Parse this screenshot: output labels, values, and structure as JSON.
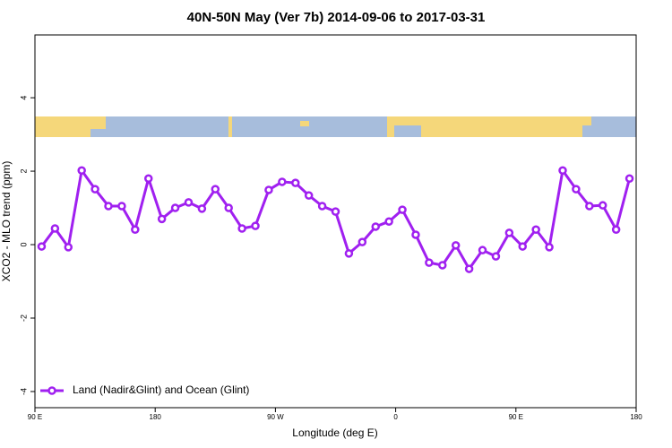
{
  "chart_data": {
    "type": "line",
    "title": "40N-50N May (Ver 7b)   2014-09-06 to 2017-03-31",
    "x_label": "Longitude (deg E)",
    "y_label": "XCO2 - MLO trend (ppm)",
    "x": [
      95,
      105,
      115,
      125,
      135,
      145,
      155,
      165,
      175,
      185,
      195,
      205,
      215,
      225,
      235,
      245,
      255,
      265,
      275,
      285,
      295,
      305,
      315,
      325,
      335,
      345,
      355,
      365,
      375,
      385,
      395,
      405,
      415,
      425,
      435,
      445,
      455,
      465,
      475,
      485,
      495,
      505,
      515,
      525,
      535
    ],
    "series": [
      {
        "name": "Land (Nadir&Glint) and Ocean (Glint)",
        "color": "#a020f0",
        "values": [
          -0.05,
          0.44,
          -0.07,
          2.02,
          1.51,
          1.05,
          1.05,
          0.41,
          1.8,
          0.7,
          1.0,
          1.15,
          0.98,
          1.51,
          1.0,
          0.44,
          0.51,
          1.49,
          1.71,
          1.68,
          1.34,
          1.05,
          0.9,
          -0.24,
          0.07,
          0.49,
          0.63,
          0.95,
          0.27,
          -0.49,
          -0.56,
          -0.02,
          -0.66,
          -0.15,
          -0.32,
          0.32,
          -0.05,
          0.41,
          -0.07,
          2.02,
          1.51,
          1.05,
          1.07,
          0.41,
          1.8
        ]
      }
    ],
    "xlim": [
      90,
      540
    ],
    "xticks": [
      {
        "value": 90,
        "label": "90 E"
      },
      180,
      {
        "value": 270,
        "label": "90 W"
      },
      {
        "value": 360,
        "label": "0"
      },
      {
        "value": 450,
        "label": "90 E"
      },
      {
        "value": 540,
        "label": "180"
      }
    ],
    "ylim": [
      -4.44,
      5.71
    ],
    "yticks": [
      -4,
      -2,
      0,
      2,
      4
    ],
    "legend": "bottomleft"
  }
}
